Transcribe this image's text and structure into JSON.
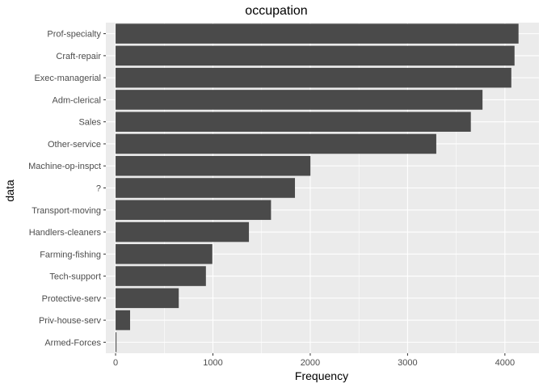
{
  "chart_data": {
    "type": "bar",
    "orientation": "horizontal",
    "title": "occupation",
    "xlabel": "Frequency",
    "ylabel": "data",
    "categories": [
      "Prof-specialty",
      "Craft-repair",
      "Exec-managerial",
      "Adm-clerical",
      "Sales",
      "Other-service",
      "Machine-op-inspct",
      "?",
      "Transport-moving",
      "Handlers-cleaners",
      "Farming-fishing",
      "Tech-support",
      "Protective-serv",
      "Priv-house-serv",
      "Armed-Forces"
    ],
    "values": [
      4140,
      4099,
      4066,
      3770,
      3650,
      3295,
      2002,
      1843,
      1597,
      1370,
      994,
      928,
      649,
      149,
      9
    ],
    "xlim": [
      -100,
      4350
    ],
    "x_ticks": [
      0,
      1000,
      2000,
      3000,
      4000
    ],
    "x_tick_labels": [
      "0",
      "1000",
      "2000",
      "3000",
      "4000"
    ],
    "grid": true,
    "bar_color": "#4a4a4a",
    "panel_color": "#ebebeb"
  }
}
